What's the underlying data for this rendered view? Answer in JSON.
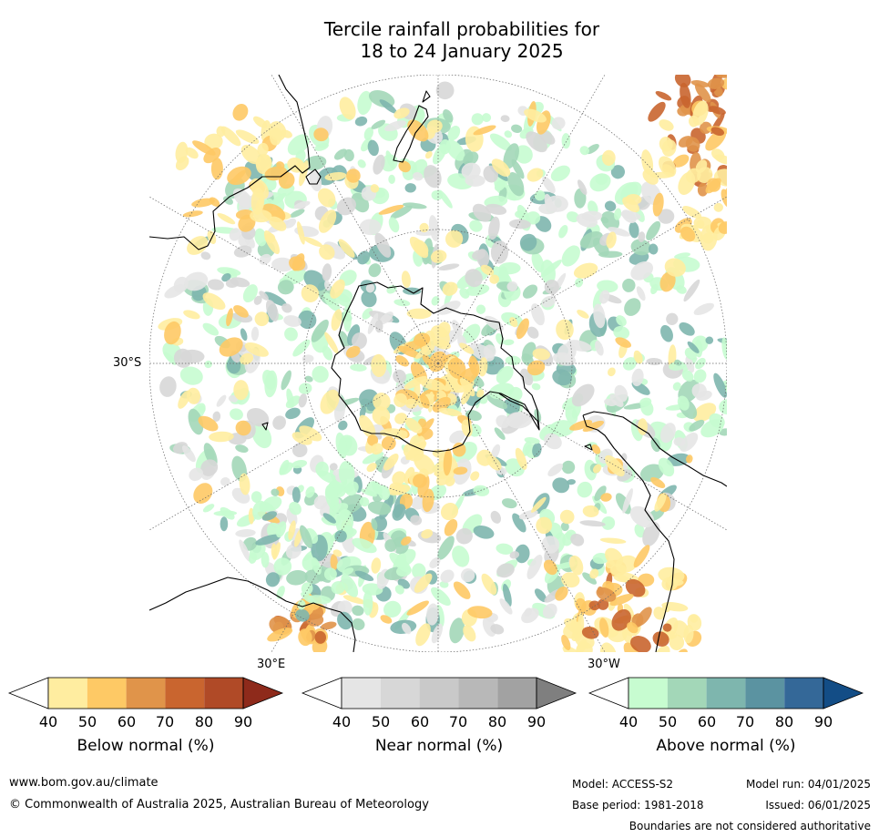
{
  "title": {
    "line1": "Tercile rainfall probabilities for",
    "line2": "18 to 24 January 2025"
  },
  "map": {
    "lat_label": "30°S",
    "lon_label_east": "30°E",
    "lon_label_west": "30°W",
    "colors": {
      "ocean": "#ffffff",
      "coast": "#000000",
      "graticule": "#666666"
    }
  },
  "colorbars": [
    {
      "name": "below",
      "label": "Below normal (%)",
      "ticks": [
        "40",
        "50",
        "60",
        "70",
        "80",
        "90"
      ],
      "colors": [
        "#ffffff",
        "#ffeda0",
        "#fec965",
        "#e0944a",
        "#c9652f",
        "#b04a27",
        "#8e2a1b"
      ]
    },
    {
      "name": "near",
      "label": "Near normal (%)",
      "ticks": [
        "40",
        "50",
        "60",
        "70",
        "80",
        "90"
      ],
      "colors": [
        "#ffffff",
        "#e5e5e5",
        "#d7d7d7",
        "#c9c9c9",
        "#b8b8b8",
        "#a2a2a2",
        "#7f7f7f"
      ]
    },
    {
      "name": "above",
      "label": "Above normal (%)",
      "ticks": [
        "40",
        "50",
        "60",
        "70",
        "80",
        "90"
      ],
      "colors": [
        "#ffffff",
        "#c7fcd0",
        "#a3d7b8",
        "#7eb6ae",
        "#5b93a1",
        "#346898",
        "#134d86"
      ]
    }
  ],
  "footer": {
    "website": "www.bom.gov.au/climate",
    "copyright": "© Commonwealth of Australia 2025, Australian Bureau of Meteorology",
    "model": "Model: ACCESS-S2",
    "base_period": "Base period: 1981-2018",
    "model_run": "Model run: 04/01/2025",
    "issued": "Issued: 06/01/2025",
    "disclaimer": "Boundaries are not considered authoritative"
  }
}
